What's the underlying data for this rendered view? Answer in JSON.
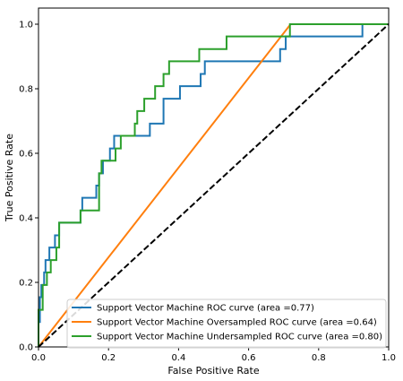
{
  "chart_data": {
    "type": "line",
    "title": "",
    "xlabel": "False Positive Rate",
    "ylabel": "True Positive Rate",
    "xlim": [
      0.0,
      1.0
    ],
    "ylim": [
      0.0,
      1.05
    ],
    "xticks": [
      "0.0",
      "0.2",
      "0.4",
      "0.6",
      "0.8",
      "1.0"
    ],
    "yticks": [
      "0.0",
      "0.2",
      "0.4",
      "0.6",
      "0.8",
      "1.0"
    ],
    "grid": false,
    "legend_position": "lower-right",
    "series": [
      {
        "name": "Support Vector Machine ROC curve (area =0.77)",
        "color": "#1f77b4",
        "points": [
          [
            0.0,
            0.0
          ],
          [
            0.0,
            0.077
          ],
          [
            0.004,
            0.077
          ],
          [
            0.004,
            0.154
          ],
          [
            0.008,
            0.154
          ],
          [
            0.008,
            0.192
          ],
          [
            0.016,
            0.192
          ],
          [
            0.016,
            0.231
          ],
          [
            0.02,
            0.231
          ],
          [
            0.02,
            0.269
          ],
          [
            0.031,
            0.269
          ],
          [
            0.031,
            0.308
          ],
          [
            0.047,
            0.308
          ],
          [
            0.047,
            0.346
          ],
          [
            0.059,
            0.346
          ],
          [
            0.059,
            0.385
          ],
          [
            0.12,
            0.385
          ],
          [
            0.12,
            0.423
          ],
          [
            0.125,
            0.423
          ],
          [
            0.125,
            0.462
          ],
          [
            0.165,
            0.462
          ],
          [
            0.165,
            0.5
          ],
          [
            0.173,
            0.5
          ],
          [
            0.173,
            0.538
          ],
          [
            0.184,
            0.538
          ],
          [
            0.184,
            0.577
          ],
          [
            0.204,
            0.577
          ],
          [
            0.204,
            0.615
          ],
          [
            0.216,
            0.615
          ],
          [
            0.216,
            0.654
          ],
          [
            0.318,
            0.654
          ],
          [
            0.318,
            0.692
          ],
          [
            0.357,
            0.692
          ],
          [
            0.357,
            0.769
          ],
          [
            0.404,
            0.769
          ],
          [
            0.404,
            0.808
          ],
          [
            0.463,
            0.808
          ],
          [
            0.463,
            0.846
          ],
          [
            0.475,
            0.846
          ],
          [
            0.475,
            0.885
          ],
          [
            0.69,
            0.885
          ],
          [
            0.69,
            0.923
          ],
          [
            0.706,
            0.923
          ],
          [
            0.706,
            0.962
          ],
          [
            0.925,
            0.962
          ],
          [
            0.925,
            1.0
          ],
          [
            1.0,
            1.0
          ]
        ]
      },
      {
        "name": "Support Vector Machine Oversampled ROC curve (area =0.64)",
        "color": "#ff7f0e",
        "points": [
          [
            0.0,
            0.0
          ],
          [
            0.72,
            1.0
          ],
          [
            1.0,
            1.0
          ]
        ]
      },
      {
        "name": "Support Vector Machine Undersampled ROC curve (area =0.80)",
        "color": "#2ca02c",
        "points": [
          [
            0.0,
            0.0
          ],
          [
            0.0,
            0.115
          ],
          [
            0.012,
            0.115
          ],
          [
            0.012,
            0.192
          ],
          [
            0.024,
            0.192
          ],
          [
            0.024,
            0.231
          ],
          [
            0.035,
            0.231
          ],
          [
            0.035,
            0.269
          ],
          [
            0.051,
            0.269
          ],
          [
            0.051,
            0.308
          ],
          [
            0.059,
            0.308
          ],
          [
            0.059,
            0.385
          ],
          [
            0.12,
            0.385
          ],
          [
            0.12,
            0.423
          ],
          [
            0.173,
            0.423
          ],
          [
            0.173,
            0.538
          ],
          [
            0.18,
            0.538
          ],
          [
            0.18,
            0.577
          ],
          [
            0.22,
            0.577
          ],
          [
            0.22,
            0.615
          ],
          [
            0.235,
            0.615
          ],
          [
            0.235,
            0.654
          ],
          [
            0.275,
            0.654
          ],
          [
            0.275,
            0.692
          ],
          [
            0.282,
            0.692
          ],
          [
            0.282,
            0.731
          ],
          [
            0.302,
            0.731
          ],
          [
            0.302,
            0.769
          ],
          [
            0.333,
            0.769
          ],
          [
            0.333,
            0.808
          ],
          [
            0.357,
            0.808
          ],
          [
            0.357,
            0.846
          ],
          [
            0.373,
            0.846
          ],
          [
            0.373,
            0.885
          ],
          [
            0.459,
            0.885
          ],
          [
            0.459,
            0.923
          ],
          [
            0.537,
            0.923
          ],
          [
            0.537,
            0.962
          ],
          [
            0.718,
            0.962
          ],
          [
            0.718,
            1.0
          ],
          [
            1.0,
            1.0
          ]
        ]
      },
      {
        "name": "",
        "color": "#000000",
        "style": "dashed",
        "points": [
          [
            0.0,
            0.0
          ],
          [
            1.0,
            1.0
          ]
        ]
      }
    ]
  }
}
